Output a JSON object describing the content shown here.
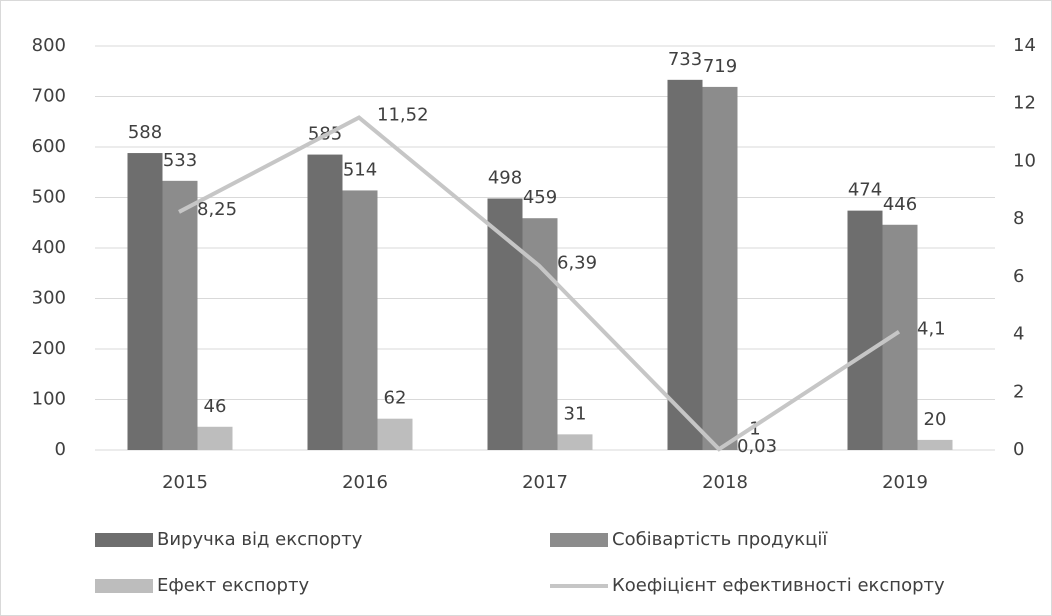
{
  "chart_data": {
    "type": "bar",
    "categories": [
      "2015",
      "2016",
      "2017",
      "2018",
      "2019"
    ],
    "series": [
      {
        "name": "Виручка від експорту",
        "color": "#6e6e6e",
        "values": [
          588,
          585,
          498,
          733,
          474
        ]
      },
      {
        "name": "Собівартість продукції",
        "color": "#8c8c8c",
        "values": [
          533,
          514,
          459,
          719,
          446
        ]
      },
      {
        "name": "Ефект експорту",
        "color": "#bdbdbd",
        "values": [
          46,
          62,
          31,
          1,
          20
        ]
      },
      {
        "name": "Коефіцієнт ефективності експорту",
        "type": "line",
        "axis": "y2",
        "color": "#c6c6c6",
        "values": [
          8.25,
          11.52,
          6.39,
          0.03,
          4.1
        ],
        "value_labels": [
          "8,25",
          "11,52",
          "6,39",
          "0,03",
          "4,1"
        ]
      }
    ],
    "ylim": [
      0,
      800
    ],
    "yticks": [
      0,
      100,
      200,
      300,
      400,
      500,
      600,
      700,
      800
    ],
    "y2lim": [
      0,
      14
    ],
    "y2ticks": [
      0,
      2,
      4,
      6,
      8,
      10,
      12,
      14
    ],
    "grid": true,
    "legend": "bottom"
  }
}
